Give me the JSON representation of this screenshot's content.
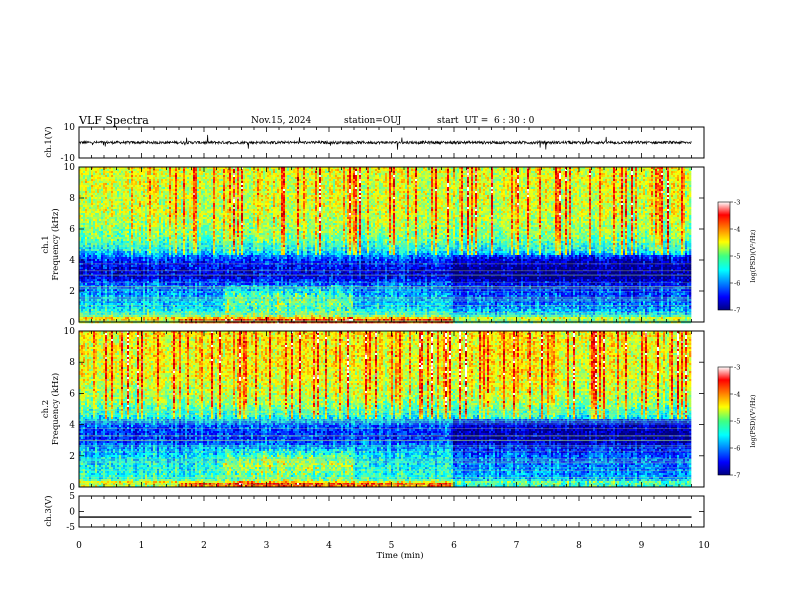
{
  "header": {
    "title": "VLF Spectra",
    "date": "Nov.15, 2024",
    "station": "station=OUJ",
    "start": "start  UT =  6 : 30 : 0"
  },
  "chart_data": [
    {
      "type": "line",
      "panel": "ch1-waveform",
      "ylabel": "ch.1(V)",
      "ylim": [
        -10,
        10
      ],
      "yticks": [
        "10",
        "-10"
      ],
      "xlim": [
        0,
        10
      ],
      "series": [
        {
          "x": [
            0,
            9.8
          ],
          "baseline": 0,
          "noise_amplitude": 1.5,
          "color": "#000000"
        }
      ]
    },
    {
      "type": "heatmap",
      "panel": "ch1-spectrogram",
      "ylabel_line1": "ch.1",
      "ylabel_line2": "Frequency (kHz)",
      "ylim": [
        0,
        10
      ],
      "yticks": [
        "0",
        "2",
        "4",
        "6",
        "8",
        "10"
      ],
      "xlim": [
        0,
        10
      ],
      "data_end_min": 9.8,
      "colormap": "jet",
      "colorbar": {
        "label": "log(PSD)(V²/Hz)",
        "range": [
          -7,
          -3
        ],
        "ticks": [
          "-3",
          "-4",
          "-5",
          "-6",
          "-7"
        ]
      },
      "band_profile": [
        {
          "f": 0.0,
          "v": -4.8
        },
        {
          "f": 0.3,
          "v": -4.2
        },
        {
          "f": 0.5,
          "v": -5.2
        },
        {
          "f": 1.0,
          "v": -5.6
        },
        {
          "f": 2.0,
          "v": -5.9
        },
        {
          "f": 2.6,
          "v": -6.2
        },
        {
          "f": 3.0,
          "v": -6.6
        },
        {
          "f": 3.5,
          "v": -6.5
        },
        {
          "f": 4.0,
          "v": -6.3
        },
        {
          "f": 4.6,
          "v": -5.6
        },
        {
          "f": 5.5,
          "v": -5.0
        },
        {
          "f": 7.0,
          "v": -4.7
        },
        {
          "f": 10.0,
          "v": -4.6
        }
      ]
    },
    {
      "type": "heatmap",
      "panel": "ch2-spectrogram",
      "ylabel_line1": "ch.2",
      "ylabel_line2": "Frequency (kHz)",
      "ylim": [
        0,
        10
      ],
      "yticks": [
        "0",
        "2",
        "4",
        "6",
        "8",
        "10"
      ],
      "xlim": [
        0,
        10
      ],
      "data_end_min": 9.8,
      "colormap": "jet",
      "colorbar": {
        "label": "log(PSD)(V²/Hz)",
        "range": [
          -7,
          -3
        ],
        "ticks": [
          "-3",
          "-4",
          "-5",
          "-6",
          "-7"
        ]
      },
      "band_profile": [
        {
          "f": 0.0,
          "v": -4.9
        },
        {
          "f": 0.3,
          "v": -4.5
        },
        {
          "f": 0.5,
          "v": -5.3
        },
        {
          "f": 1.0,
          "v": -5.4
        },
        {
          "f": 2.0,
          "v": -5.6
        },
        {
          "f": 2.6,
          "v": -5.9
        },
        {
          "f": 3.0,
          "v": -6.3
        },
        {
          "f": 3.5,
          "v": -6.3
        },
        {
          "f": 4.0,
          "v": -6.1
        },
        {
          "f": 4.6,
          "v": -5.4
        },
        {
          "f": 5.5,
          "v": -4.9
        },
        {
          "f": 7.0,
          "v": -4.6
        },
        {
          "f": 10.0,
          "v": -4.5
        }
      ]
    },
    {
      "type": "line",
      "panel": "ch3-waveform",
      "ylabel": "ch.3(V)",
      "ylim": [
        -5,
        5
      ],
      "yticks": [
        "5",
        "0",
        "-5"
      ],
      "xlim": [
        0,
        10
      ],
      "xlabel": "Time (min)",
      "xticks": [
        "0",
        "1",
        "2",
        "3",
        "4",
        "5",
        "6",
        "7",
        "8",
        "9",
        "10"
      ],
      "series": [
        {
          "x": [
            0,
            9.8
          ],
          "y": [
            -1.8,
            -1.8
          ],
          "color": "#000000"
        }
      ]
    }
  ]
}
